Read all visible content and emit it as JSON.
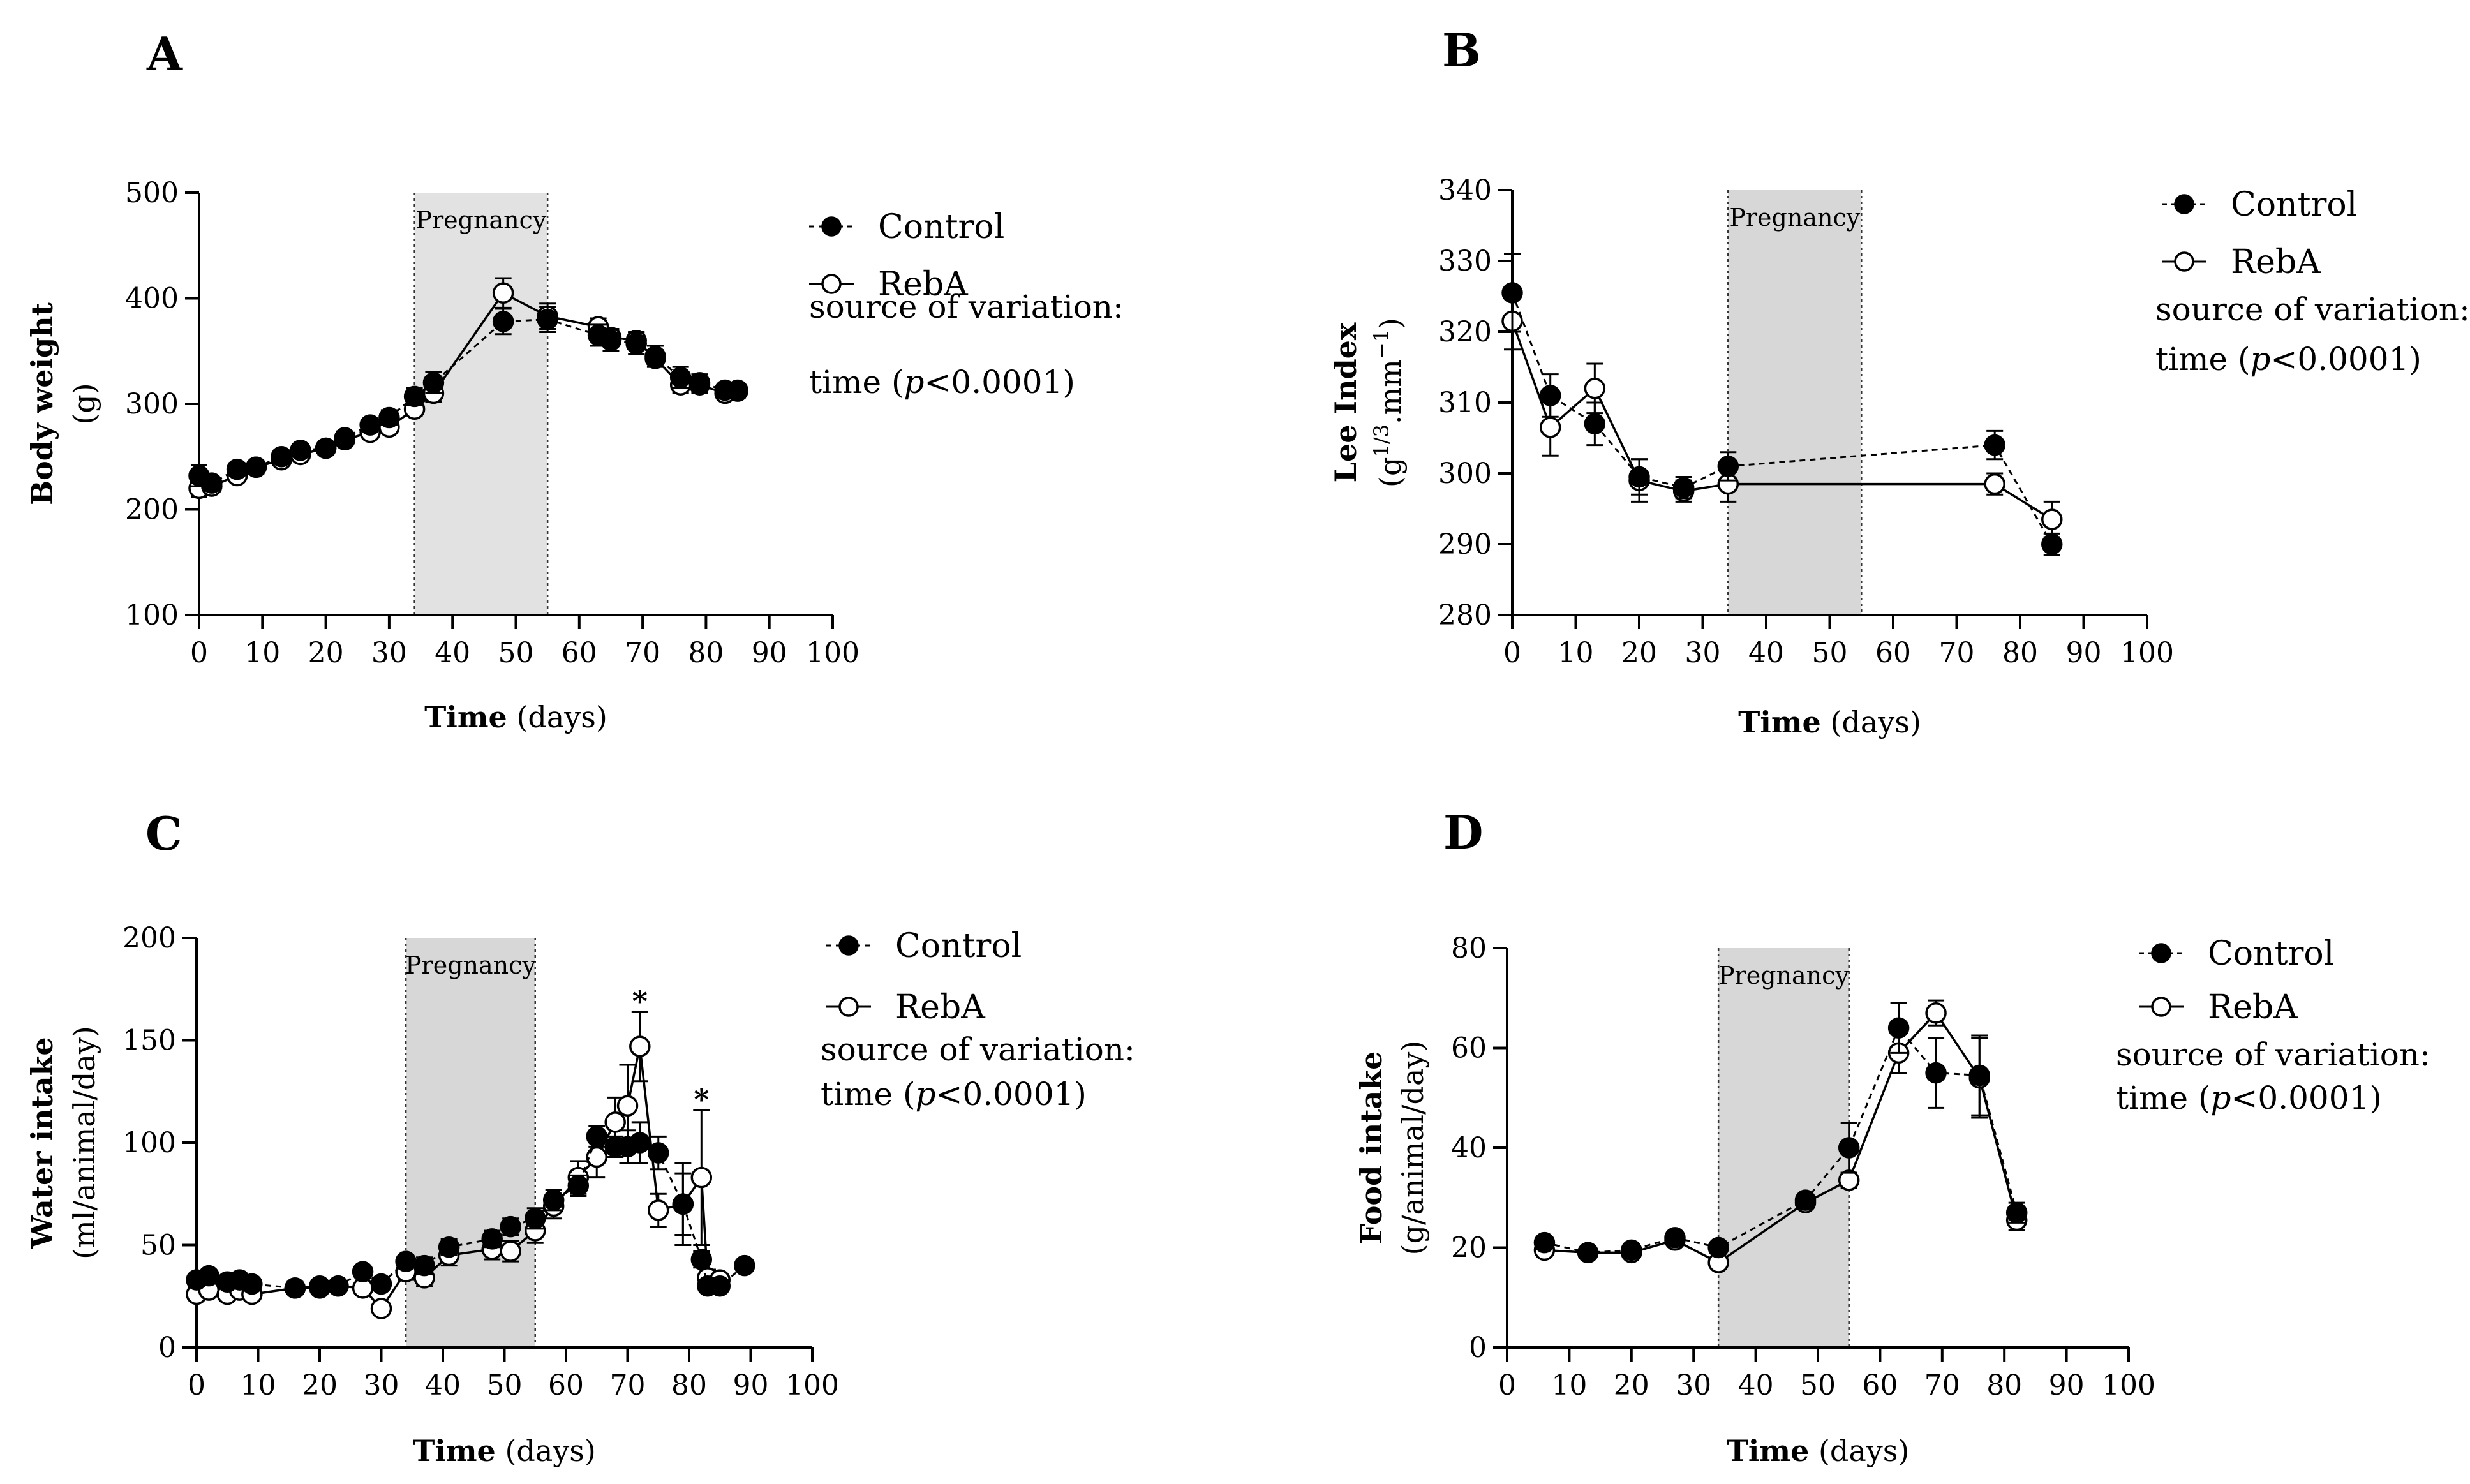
{
  "chart_data": [
    {
      "panel": "A",
      "type": "line",
      "ylabel": "Body weight",
      "ylabel_unit": "(g)",
      "xlabel": "Time",
      "xlabel_unit": " (days)",
      "xlim": [
        0,
        100
      ],
      "ylim": [
        100,
        500
      ],
      "xticks": [
        0,
        10,
        20,
        30,
        40,
        50,
        60,
        70,
        80,
        90,
        100
      ],
      "yticks": [
        100,
        200,
        300,
        400,
        500
      ],
      "shaded_region": {
        "x0": 34,
        "x1": 55,
        "label": "Pregnancy"
      },
      "legend": [
        "Control",
        "RebA"
      ],
      "note": [
        "source of variation:",
        "time (",
        "p",
        "<0.0001)"
      ],
      "series": [
        {
          "name": "Control",
          "style": "dashed",
          "marker": "filled",
          "x": [
            0,
            2,
            6,
            9,
            13,
            16,
            20,
            23,
            27,
            30,
            34,
            37,
            48,
            55,
            63,
            65,
            69,
            72,
            76,
            79,
            83,
            85
          ],
          "y": [
            232,
            225,
            238,
            240,
            250,
            256,
            258,
            268,
            280,
            287,
            307,
            320,
            378,
            380,
            365,
            360,
            357,
            345,
            325,
            320,
            313,
            313
          ],
          "err": [
            10,
            5,
            6,
            6,
            6,
            6,
            6,
            6,
            6,
            7,
            8,
            10,
            12,
            12,
            10,
            10,
            10,
            10,
            10,
            8,
            6,
            6
          ]
        },
        {
          "name": "RebA",
          "style": "solid",
          "marker": "open",
          "x": [
            0,
            2,
            6,
            9,
            13,
            16,
            20,
            23,
            27,
            30,
            34,
            37,
            48,
            55,
            63,
            65,
            69,
            72,
            76,
            79,
            83,
            85
          ],
          "y": [
            220,
            222,
            232,
            240,
            247,
            252,
            258,
            266,
            273,
            278,
            295,
            310,
            405,
            383,
            373,
            363,
            360,
            343,
            318,
            318,
            310,
            312
          ],
          "err": [
            8,
            5,
            5,
            5,
            5,
            5,
            5,
            5,
            5,
            6,
            6,
            8,
            14,
            12,
            8,
            8,
            8,
            8,
            8,
            8,
            6,
            6
          ]
        }
      ]
    },
    {
      "panel": "B",
      "type": "line",
      "ylabel": "Lee Index",
      "ylabel_unit_parts": [
        "(g",
        "1/3",
        ".mm",
        "−1",
        ")"
      ],
      "xlabel": "Time",
      "xlabel_unit": " (days)",
      "xlim": [
        0,
        100
      ],
      "ylim": [
        280,
        340
      ],
      "xticks": [
        0,
        10,
        20,
        30,
        40,
        50,
        60,
        70,
        80,
        90,
        100
      ],
      "yticks": [
        280,
        290,
        300,
        310,
        320,
        330,
        340
      ],
      "shaded_region": {
        "x0": 34,
        "x1": 55,
        "label": "Pregnancy"
      },
      "legend": [
        "Control",
        "RebA"
      ],
      "note": [
        "source of variation:",
        "time (",
        "p",
        "<0.0001)"
      ],
      "series": [
        {
          "name": "Control",
          "style": "dashed",
          "marker": "filled",
          "x": [
            0,
            6,
            13,
            20,
            27,
            34,
            76,
            85
          ],
          "y": [
            325.5,
            311,
            307,
            299.5,
            298,
            301,
            304,
            290
          ],
          "err": [
            5.5,
            3,
            3,
            2.5,
            1.5,
            2,
            2,
            1.5
          ]
        },
        {
          "name": "RebA",
          "style": "solid",
          "marker": "open",
          "x": [
            0,
            6,
            13,
            20,
            27,
            34,
            76,
            85
          ],
          "y": [
            321.5,
            306.5,
            312,
            299,
            297.5,
            298.5,
            298.5,
            293.5
          ],
          "err": [
            4,
            4,
            3.5,
            3,
            1.5,
            2.5,
            1.5,
            2.5
          ]
        }
      ]
    },
    {
      "panel": "C",
      "type": "line",
      "ylabel": "Water intake",
      "ylabel_unit": "(ml/animal/day)",
      "xlabel": "Time",
      "xlabel_unit": " (days)",
      "xlim": [
        0,
        100
      ],
      "ylim": [
        0,
        200
      ],
      "xticks": [
        0,
        10,
        20,
        30,
        40,
        50,
        60,
        70,
        80,
        90,
        100
      ],
      "yticks": [
        0,
        50,
        100,
        150,
        200
      ],
      "shaded_region": {
        "x0": 34,
        "x1": 55,
        "label": "Pregnancy"
      },
      "legend": [
        "Control",
        "RebA"
      ],
      "note": [
        "source of variation:",
        "time (",
        "p",
        "<0.0001)"
      ],
      "annotations": [
        {
          "x": 72,
          "y": 164,
          "text": "*"
        },
        {
          "x": 82,
          "y": 116,
          "text": "*"
        }
      ],
      "series": [
        {
          "name": "Control",
          "style": "dashed",
          "marker": "filled",
          "x": [
            0,
            2,
            5,
            7,
            9,
            16,
            20,
            23,
            27,
            30,
            34,
            37,
            41,
            48,
            51,
            55,
            58,
            62,
            65,
            68,
            70,
            72,
            75,
            79,
            82,
            83,
            85,
            89
          ],
          "y": [
            33,
            35,
            32,
            33,
            31,
            29,
            30,
            30,
            37,
            31,
            42,
            40,
            49,
            53,
            59,
            63,
            72,
            79,
            103,
            98,
            98,
            100,
            95,
            70,
            43,
            30,
            30,
            40
          ],
          "err": [
            3,
            2,
            2,
            2,
            2,
            3,
            2,
            2,
            2,
            2,
            3,
            4,
            4,
            4,
            4,
            5,
            5,
            5,
            5,
            5,
            8,
            10,
            8,
            20,
            4,
            3,
            3,
            2
          ]
        },
        {
          "name": "RebA",
          "style": "solid",
          "marker": "open",
          "x": [
            0,
            2,
            5,
            7,
            9,
            16,
            20,
            23,
            27,
            30,
            34,
            37,
            41,
            48,
            51,
            55,
            58,
            62,
            65,
            68,
            70,
            72,
            75,
            79,
            82,
            83,
            85
          ],
          "y": [
            26,
            28,
            26,
            28,
            26,
            29,
            29,
            30,
            29,
            19,
            37,
            34,
            45,
            48,
            47,
            57,
            69,
            83,
            93,
            110,
            118,
            147,
            67,
            70,
            83,
            34,
            33
          ],
          "err": [
            2,
            2,
            2,
            2,
            2,
            3,
            2,
            2,
            2,
            2,
            4,
            4,
            5,
            5,
            5,
            6,
            6,
            8,
            10,
            12,
            20,
            17,
            8,
            15,
            33,
            4,
            3
          ]
        }
      ]
    },
    {
      "panel": "D",
      "type": "line",
      "ylabel": "Food intake",
      "ylabel_unit": "(g/animal/day)",
      "xlabel": "Time",
      "xlabel_unit": " (days)",
      "xlim": [
        0,
        100
      ],
      "ylim": [
        0,
        80
      ],
      "xticks": [
        0,
        10,
        20,
        30,
        40,
        50,
        60,
        70,
        80,
        90,
        100
      ],
      "yticks": [
        0,
        20,
        40,
        60,
        80
      ],
      "shaded_region": {
        "x0": 34,
        "x1": 55,
        "label": "Pregnancy"
      },
      "legend": [
        "Control",
        "RebA"
      ],
      "note": [
        "source of variation:",
        "time (",
        "p",
        "<0.0001)"
      ],
      "series": [
        {
          "name": "Control",
          "style": "dashed",
          "marker": "filled",
          "x": [
            6,
            13,
            20,
            27,
            34,
            48,
            55,
            63,
            69,
            76,
            82
          ],
          "y": [
            21,
            19,
            19.5,
            22,
            20,
            29.5,
            40,
            64,
            55,
            54.5,
            27
          ],
          "err": [
            0.8,
            0.5,
            0.6,
            0.6,
            0.6,
            1,
            5,
            5,
            7,
            8,
            2
          ]
        },
        {
          "name": "RebA",
          "style": "solid",
          "marker": "open",
          "x": [
            6,
            13,
            20,
            27,
            34,
            48,
            55,
            63,
            69,
            76,
            82
          ],
          "y": [
            19.5,
            19,
            19,
            21.5,
            17,
            29,
            33.5,
            59,
            67,
            54,
            25.5
          ],
          "err": [
            0.6,
            0.5,
            0.6,
            0.6,
            0.6,
            1,
            1.5,
            4,
            2.5,
            8,
            2
          ]
        }
      ]
    }
  ]
}
